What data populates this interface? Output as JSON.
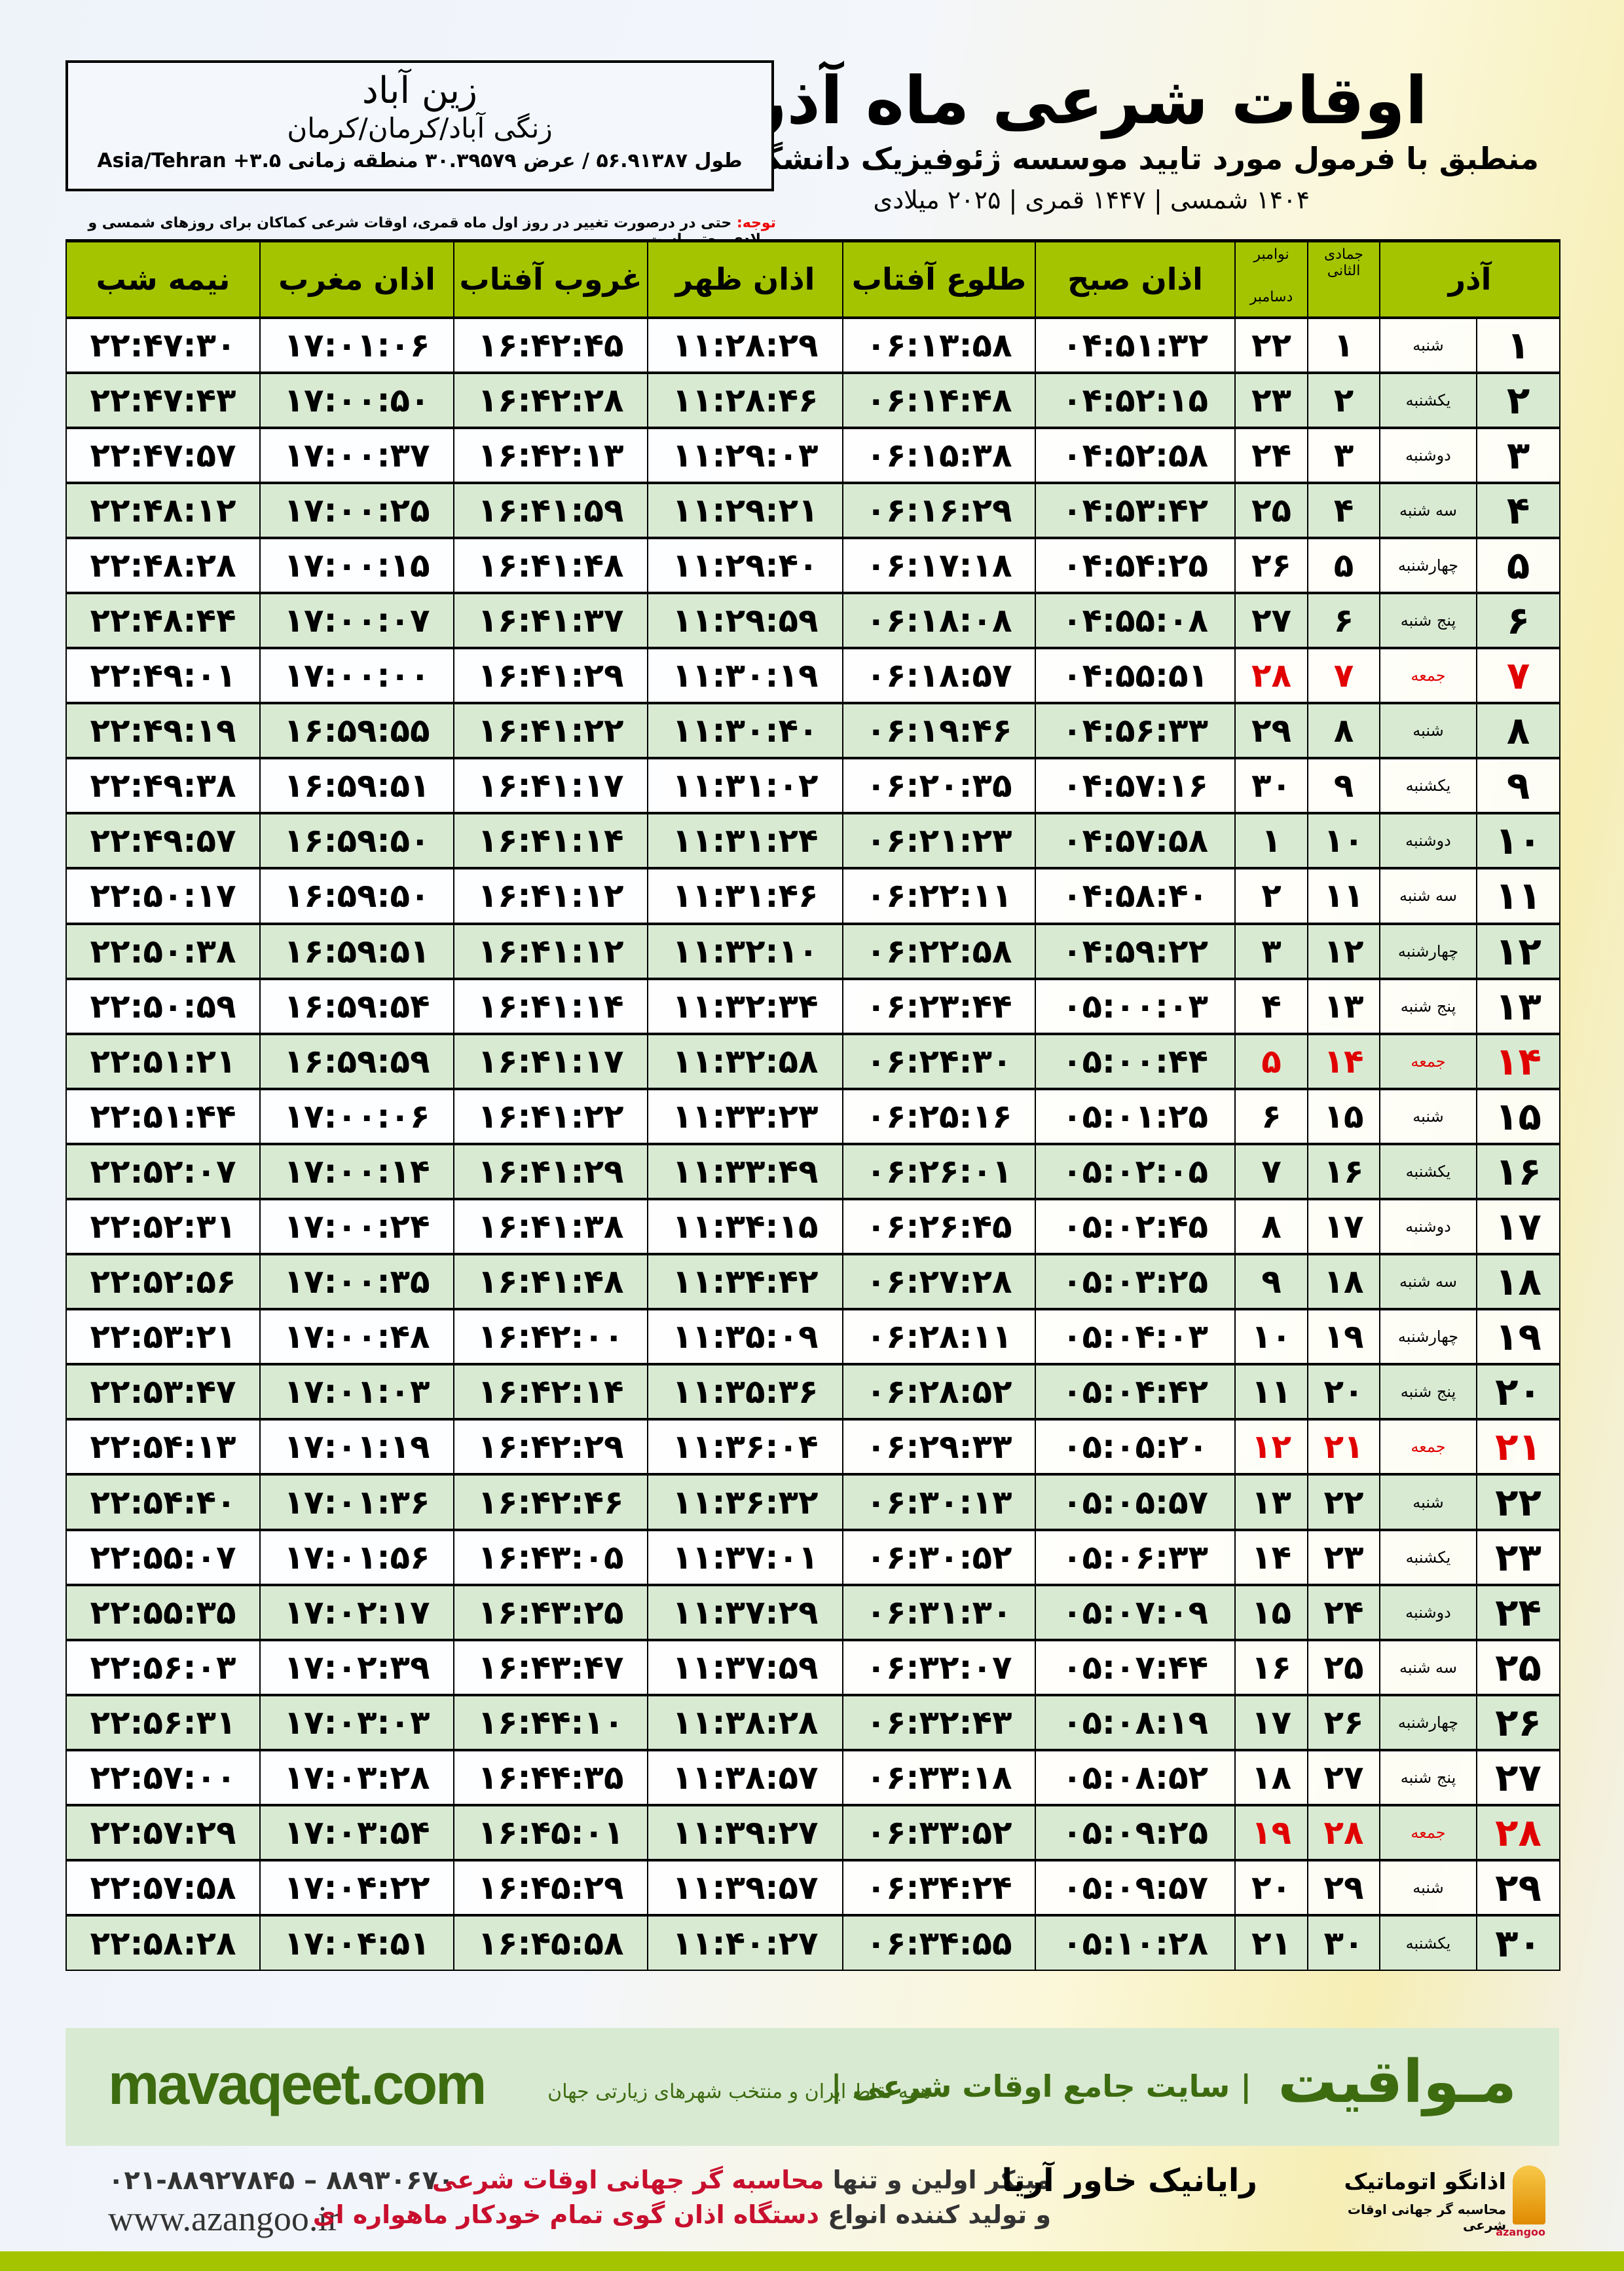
{
  "header": {
    "title": "اوقات شرعی ماه آذر",
    "subtitle": "منطبق با فرمول مورد تایید موسسه ژئوفیزیک دانشگاه تهران",
    "dates": "۱۴۰۴ شمسی | ۱۴۴۷ قمری | ۲۰۲۵ میلادی"
  },
  "location": {
    "city": "زین آباد",
    "path": "زنگی آباد/کرمان/کرمان",
    "geo": "طول ۵۶.۹۱۳۸۷ / عرض ۳۰.۳۹۵۷۹ منطقه زمانی ۳.۵+ Asia/Tehran"
  },
  "note": {
    "label": "توجه:",
    "text": " حتی در درصورت تغییر در روز اول ماه قمری، اوقات شرعی کماکان برای روزهای شمسی و میلادی معتبر است."
  },
  "columns": {
    "month": "آذر",
    "hijri": "جمادی الثانی",
    "greg_top": "نوامبر",
    "greg_bottom": "دسامبر",
    "fajr": "اذان صبح",
    "sunrise": "طلوع آفتاب",
    "dhuhr": "اذان ظهر",
    "sunset": "غروب آفتاب",
    "maghrib": "اذان مغرب",
    "midnight": "نیمه شب"
  },
  "colors": {
    "header_green": "#a5c400",
    "row_green": "#d9ead3",
    "holiday_red": "#e00000",
    "brand_green": "#3d6b10"
  },
  "rows": [
    {
      "day": "۱",
      "weekday": "شنبه",
      "hijri": "۱",
      "greg": "۲۲",
      "holiday": false,
      "times": [
        "۰۴:۵۱:۳۲",
        "۰۶:۱۳:۵۸",
        "۱۱:۲۸:۲۹",
        "۱۶:۴۲:۴۵",
        "۱۷:۰۱:۰۶",
        "۲۲:۴۷:۳۰"
      ]
    },
    {
      "day": "۲",
      "weekday": "یکشنبه",
      "hijri": "۲",
      "greg": "۲۳",
      "holiday": false,
      "times": [
        "۰۴:۵۲:۱۵",
        "۰۶:۱۴:۴۸",
        "۱۱:۲۸:۴۶",
        "۱۶:۴۲:۲۸",
        "۱۷:۰۰:۵۰",
        "۲۲:۴۷:۴۳"
      ]
    },
    {
      "day": "۳",
      "weekday": "دوشنبه",
      "hijri": "۳",
      "greg": "۲۴",
      "holiday": false,
      "times": [
        "۰۴:۵۲:۵۸",
        "۰۶:۱۵:۳۸",
        "۱۱:۲۹:۰۳",
        "۱۶:۴۲:۱۳",
        "۱۷:۰۰:۳۷",
        "۲۲:۴۷:۵۷"
      ]
    },
    {
      "day": "۴",
      "weekday": "سه شنبه",
      "hijri": "۴",
      "greg": "۲۵",
      "holiday": false,
      "times": [
        "۰۴:۵۳:۴۲",
        "۰۶:۱۶:۲۹",
        "۱۱:۲۹:۲۱",
        "۱۶:۴۱:۵۹",
        "۱۷:۰۰:۲۵",
        "۲۲:۴۸:۱۲"
      ]
    },
    {
      "day": "۵",
      "weekday": "چهارشنبه",
      "hijri": "۵",
      "greg": "۲۶",
      "holiday": false,
      "times": [
        "۰۴:۵۴:۲۵",
        "۰۶:۱۷:۱۸",
        "۱۱:۲۹:۴۰",
        "۱۶:۴۱:۴۸",
        "۱۷:۰۰:۱۵",
        "۲۲:۴۸:۲۸"
      ]
    },
    {
      "day": "۶",
      "weekday": "پنج شنبه",
      "hijri": "۶",
      "greg": "۲۷",
      "holiday": false,
      "times": [
        "۰۴:۵۵:۰۸",
        "۰۶:۱۸:۰۸",
        "۱۱:۲۹:۵۹",
        "۱۶:۴۱:۳۷",
        "۱۷:۰۰:۰۷",
        "۲۲:۴۸:۴۴"
      ]
    },
    {
      "day": "۷",
      "weekday": "جمعه",
      "hijri": "۷",
      "greg": "۲۸",
      "holiday": true,
      "times": [
        "۰۴:۵۵:۵۱",
        "۰۶:۱۸:۵۷",
        "۱۱:۳۰:۱۹",
        "۱۶:۴۱:۲۹",
        "۱۷:۰۰:۰۰",
        "۲۲:۴۹:۰۱"
      ]
    },
    {
      "day": "۸",
      "weekday": "شنبه",
      "hijri": "۸",
      "greg": "۲۹",
      "holiday": false,
      "times": [
        "۰۴:۵۶:۳۳",
        "۰۶:۱۹:۴۶",
        "۱۱:۳۰:۴۰",
        "۱۶:۴۱:۲۲",
        "۱۶:۵۹:۵۵",
        "۲۲:۴۹:۱۹"
      ]
    },
    {
      "day": "۹",
      "weekday": "یکشنبه",
      "hijri": "۹",
      "greg": "۳۰",
      "holiday": false,
      "times": [
        "۰۴:۵۷:۱۶",
        "۰۶:۲۰:۳۵",
        "۱۱:۳۱:۰۲",
        "۱۶:۴۱:۱۷",
        "۱۶:۵۹:۵۱",
        "۲۲:۴۹:۳۸"
      ]
    },
    {
      "day": "۱۰",
      "weekday": "دوشنبه",
      "hijri": "۱۰",
      "greg": "۱",
      "holiday": false,
      "times": [
        "۰۴:۵۷:۵۸",
        "۰۶:۲۱:۲۳",
        "۱۱:۳۱:۲۴",
        "۱۶:۴۱:۱۴",
        "۱۶:۵۹:۵۰",
        "۲۲:۴۹:۵۷"
      ]
    },
    {
      "day": "۱۱",
      "weekday": "سه شنبه",
      "hijri": "۱۱",
      "greg": "۲",
      "holiday": false,
      "times": [
        "۰۴:۵۸:۴۰",
        "۰۶:۲۲:۱۱",
        "۱۱:۳۱:۴۶",
        "۱۶:۴۱:۱۲",
        "۱۶:۵۹:۵۰",
        "۲۲:۵۰:۱۷"
      ]
    },
    {
      "day": "۱۲",
      "weekday": "چهارشنبه",
      "hijri": "۱۲",
      "greg": "۳",
      "holiday": false,
      "times": [
        "۰۴:۵۹:۲۲",
        "۰۶:۲۲:۵۸",
        "۱۱:۳۲:۱۰",
        "۱۶:۴۱:۱۲",
        "۱۶:۵۹:۵۱",
        "۲۲:۵۰:۳۸"
      ]
    },
    {
      "day": "۱۳",
      "weekday": "پنج شنبه",
      "hijri": "۱۳",
      "greg": "۴",
      "holiday": false,
      "times": [
        "۰۵:۰۰:۰۳",
        "۰۶:۲۳:۴۴",
        "۱۱:۳۲:۳۴",
        "۱۶:۴۱:۱۴",
        "۱۶:۵۹:۵۴",
        "۲۲:۵۰:۵۹"
      ]
    },
    {
      "day": "۱۴",
      "weekday": "جمعه",
      "hijri": "۱۴",
      "greg": "۵",
      "holiday": true,
      "times": [
        "۰۵:۰۰:۴۴",
        "۰۶:۲۴:۳۰",
        "۱۱:۳۲:۵۸",
        "۱۶:۴۱:۱۷",
        "۱۶:۵۹:۵۹",
        "۲۲:۵۱:۲۱"
      ]
    },
    {
      "day": "۱۵",
      "weekday": "شنبه",
      "hijri": "۱۵",
      "greg": "۶",
      "holiday": false,
      "times": [
        "۰۵:۰۱:۲۵",
        "۰۶:۲۵:۱۶",
        "۱۱:۳۳:۲۳",
        "۱۶:۴۱:۲۲",
        "۱۷:۰۰:۰۶",
        "۲۲:۵۱:۴۴"
      ]
    },
    {
      "day": "۱۶",
      "weekday": "یکشنبه",
      "hijri": "۱۶",
      "greg": "۷",
      "holiday": false,
      "times": [
        "۰۵:۰۲:۰۵",
        "۰۶:۲۶:۰۱",
        "۱۱:۳۳:۴۹",
        "۱۶:۴۱:۲۹",
        "۱۷:۰۰:۱۴",
        "۲۲:۵۲:۰۷"
      ]
    },
    {
      "day": "۱۷",
      "weekday": "دوشنبه",
      "hijri": "۱۷",
      "greg": "۸",
      "holiday": false,
      "times": [
        "۰۵:۰۲:۴۵",
        "۰۶:۲۶:۴۵",
        "۱۱:۳۴:۱۵",
        "۱۶:۴۱:۳۸",
        "۱۷:۰۰:۲۴",
        "۲۲:۵۲:۳۱"
      ]
    },
    {
      "day": "۱۸",
      "weekday": "سه شنبه",
      "hijri": "۱۸",
      "greg": "۹",
      "holiday": false,
      "times": [
        "۰۵:۰۳:۲۵",
        "۰۶:۲۷:۲۸",
        "۱۱:۳۴:۴۲",
        "۱۶:۴۱:۴۸",
        "۱۷:۰۰:۳۵",
        "۲۲:۵۲:۵۶"
      ]
    },
    {
      "day": "۱۹",
      "weekday": "چهارشنبه",
      "hijri": "۱۹",
      "greg": "۱۰",
      "holiday": false,
      "times": [
        "۰۵:۰۴:۰۳",
        "۰۶:۲۸:۱۱",
        "۱۱:۳۵:۰۹",
        "۱۶:۴۲:۰۰",
        "۱۷:۰۰:۴۸",
        "۲۲:۵۳:۲۱"
      ]
    },
    {
      "day": "۲۰",
      "weekday": "پنج شنبه",
      "hijri": "۲۰",
      "greg": "۱۱",
      "holiday": false,
      "times": [
        "۰۵:۰۴:۴۲",
        "۰۶:۲۸:۵۲",
        "۱۱:۳۵:۳۶",
        "۱۶:۴۲:۱۴",
        "۱۷:۰۱:۰۳",
        "۲۲:۵۳:۴۷"
      ]
    },
    {
      "day": "۲۱",
      "weekday": "جمعه",
      "hijri": "۲۱",
      "greg": "۱۲",
      "holiday": true,
      "times": [
        "۰۵:۰۵:۲۰",
        "۰۶:۲۹:۳۳",
        "۱۱:۳۶:۰۴",
        "۱۶:۴۲:۲۹",
        "۱۷:۰۱:۱۹",
        "۲۲:۵۴:۱۳"
      ]
    },
    {
      "day": "۲۲",
      "weekday": "شنبه",
      "hijri": "۲۲",
      "greg": "۱۳",
      "holiday": false,
      "times": [
        "۰۵:۰۵:۵۷",
        "۰۶:۳۰:۱۳",
        "۱۱:۳۶:۳۲",
        "۱۶:۴۲:۴۶",
        "۱۷:۰۱:۳۶",
        "۲۲:۵۴:۴۰"
      ]
    },
    {
      "day": "۲۳",
      "weekday": "یکشنبه",
      "hijri": "۲۳",
      "greg": "۱۴",
      "holiday": false,
      "times": [
        "۰۵:۰۶:۳۳",
        "۰۶:۳۰:۵۲",
        "۱۱:۳۷:۰۱",
        "۱۶:۴۳:۰۵",
        "۱۷:۰۱:۵۶",
        "۲۲:۵۵:۰۷"
      ]
    },
    {
      "day": "۲۴",
      "weekday": "دوشنبه",
      "hijri": "۲۴",
      "greg": "۱۵",
      "holiday": false,
      "times": [
        "۰۵:۰۷:۰۹",
        "۰۶:۳۱:۳۰",
        "۱۱:۳۷:۲۹",
        "۱۶:۴۳:۲۵",
        "۱۷:۰۲:۱۷",
        "۲۲:۵۵:۳۵"
      ]
    },
    {
      "day": "۲۵",
      "weekday": "سه شنبه",
      "hijri": "۲۵",
      "greg": "۱۶",
      "holiday": false,
      "times": [
        "۰۵:۰۷:۴۴",
        "۰۶:۳۲:۰۷",
        "۱۱:۳۷:۵۹",
        "۱۶:۴۳:۴۷",
        "۱۷:۰۲:۳۹",
        "۲۲:۵۶:۰۳"
      ]
    },
    {
      "day": "۲۶",
      "weekday": "چهارشنبه",
      "hijri": "۲۶",
      "greg": "۱۷",
      "holiday": false,
      "times": [
        "۰۵:۰۸:۱۹",
        "۰۶:۳۲:۴۳",
        "۱۱:۳۸:۲۸",
        "۱۶:۴۴:۱۰",
        "۱۷:۰۳:۰۳",
        "۲۲:۵۶:۳۱"
      ]
    },
    {
      "day": "۲۷",
      "weekday": "پنج شنبه",
      "hijri": "۲۷",
      "greg": "۱۸",
      "holiday": false,
      "times": [
        "۰۵:۰۸:۵۲",
        "۰۶:۳۳:۱۸",
        "۱۱:۳۸:۵۷",
        "۱۶:۴۴:۳۵",
        "۱۷:۰۳:۲۸",
        "۲۲:۵۷:۰۰"
      ]
    },
    {
      "day": "۲۸",
      "weekday": "جمعه",
      "hijri": "۲۸",
      "greg": "۱۹",
      "holiday": true,
      "times": [
        "۰۵:۰۹:۲۵",
        "۰۶:۳۳:۵۲",
        "۱۱:۳۹:۲۷",
        "۱۶:۴۵:۰۱",
        "۱۷:۰۳:۵۴",
        "۲۲:۵۷:۲۹"
      ]
    },
    {
      "day": "۲۹",
      "weekday": "شنبه",
      "hijri": "۲۹",
      "greg": "۲۰",
      "holiday": false,
      "times": [
        "۰۵:۰۹:۵۷",
        "۰۶:۳۴:۲۴",
        "۱۱:۳۹:۵۷",
        "۱۶:۴۵:۲۹",
        "۱۷:۰۴:۲۲",
        "۲۲:۵۷:۵۸"
      ]
    },
    {
      "day": "۳۰",
      "weekday": "یکشنبه",
      "hijri": "۳۰",
      "greg": "۲۱",
      "holiday": false,
      "times": [
        "۰۵:۱۰:۲۸",
        "۰۶:۳۴:۵۵",
        "۱۱:۴۰:۲۷",
        "۱۶:۴۵:۵۸",
        "۱۷:۰۴:۵۱",
        "۲۲:۵۸:۲۸"
      ]
    }
  ],
  "banner": {
    "brand": "مـواقیت",
    "slogan": "| سایت جامع اوقات شرعی |",
    "slogan2": "همه نقاط ایران و منتخب شهرهای زیارتی جهان",
    "site": "mavaqeet.com"
  },
  "footer": {
    "phone": "۰۲۱-۸۸۹۲۷۸۴۵ – ۸۸۹۳۰۶۷۰",
    "web": "www.azangoo.ir",
    "ad1_a": "مبتکر اولین و تنها ",
    "ad1_b": "محاسبه گر جهانی اوقات شرعی",
    "ad2_a": "و تولید کننده انواع ",
    "ad2_b": "دستگاه اذان گوی تمام خودکار ماهواره ای",
    "logo_rayanik": "رایانیک خاور آریا",
    "logo_azangoo": "اذانگو اتوماتیک",
    "logo_azangoo_sub": "محاسبه گر جهانی اوقات شرعی",
    "logo_azangoo_en": "azangoo"
  }
}
